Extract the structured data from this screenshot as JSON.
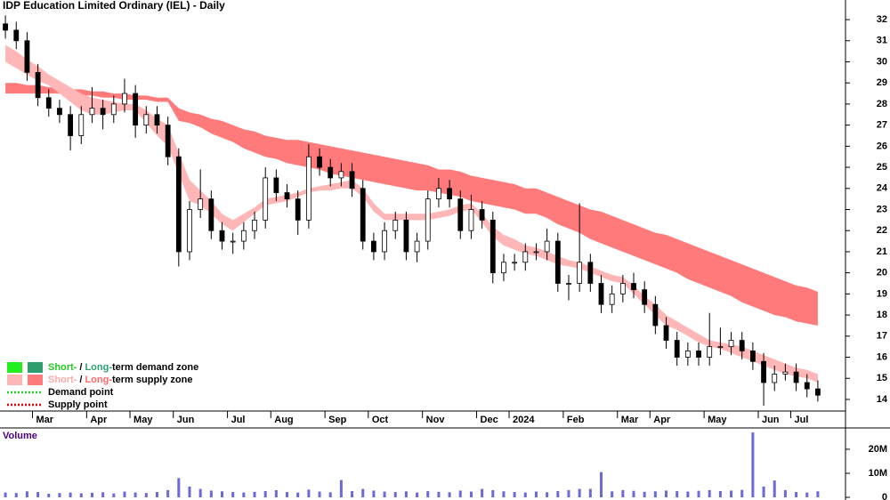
{
  "chart_data": [
    {
      "type": "candlestick",
      "title": "IDP Education Limited Ordinary (IEL) - Daily",
      "categories": [
        null,
        null,
        null,
        "Mar",
        null,
        null,
        null,
        null,
        "Apr",
        null,
        null,
        null,
        "May",
        null,
        null,
        null,
        "Jun",
        null,
        null,
        null,
        null,
        "Jul",
        null,
        null,
        null,
        "Aug",
        null,
        null,
        null,
        null,
        "Sep",
        null,
        null,
        null,
        "Oct",
        null,
        null,
        null,
        null,
        "Nov",
        null,
        null,
        null,
        null,
        "Dec",
        null,
        null,
        "2024",
        null,
        null,
        null,
        null,
        "Feb",
        null,
        null,
        null,
        null,
        "Mar",
        null,
        null,
        "Apr",
        null,
        null,
        null,
        null,
        "May",
        null,
        null,
        null,
        null,
        "Jun",
        null,
        null,
        "Jul",
        null,
        null
      ],
      "open": [
        31.8,
        31.5,
        31,
        29.5,
        28.3,
        27.8,
        27.5,
        26.5,
        27.5,
        27.8,
        27.5,
        28,
        28.5,
        27,
        27.5,
        27,
        25.5,
        21,
        23,
        23.5,
        22,
        21.5,
        21.5,
        22,
        22.5,
        24.5,
        23.8,
        23.5,
        22.5,
        25.5,
        25,
        24.5,
        24.8,
        24,
        21.5,
        21,
        22,
        22.5,
        21,
        21.5,
        23.5,
        24,
        23.5,
        22,
        23,
        22.5,
        20,
        20.5,
        20.5,
        21,
        21,
        21.5,
        19.5,
        19.5,
        20.5,
        19.5,
        18.5,
        19,
        19.5,
        19.2,
        18.5,
        17.5,
        16.8,
        16,
        16.3,
        16,
        16.5,
        16.5,
        16.8,
        16.3,
        15.8,
        14.8,
        15.2,
        15.3,
        14.8,
        14.5
      ],
      "high": [
        32.2,
        31.9,
        31.4,
        29.9,
        28.7,
        28.2,
        27.9,
        27.9,
        28.8,
        28.2,
        28.4,
        29.2,
        28.9,
        27.9,
        27.9,
        27.4,
        25.9,
        23.4,
        24.9,
        23.9,
        22.4,
        21.9,
        22.4,
        22.9,
        25,
        24.9,
        24.2,
        23.9,
        26.1,
        25.9,
        25.4,
        25.2,
        25.2,
        24.4,
        21.9,
        22.4,
        22.9,
        22.9,
        21.9,
        23.9,
        24.5,
        24.4,
        23.9,
        23.7,
        23.4,
        22.9,
        20.9,
        20.9,
        21.4,
        21.4,
        22.1,
        21.9,
        19.9,
        23.3,
        20.9,
        19.9,
        19.4,
        19.9,
        20,
        19.6,
        18.9,
        17.9,
        17.2,
        16.7,
        16.7,
        18.1,
        17.4,
        17.2,
        17.2,
        16.7,
        16.2,
        15.6,
        15.7,
        15.7,
        15.2,
        14.9
      ],
      "low": [
        31.1,
        30.6,
        29.1,
        27.9,
        27.4,
        27.1,
        25.8,
        26.1,
        27.1,
        26.8,
        27.1,
        27.6,
        26.4,
        26.6,
        26.6,
        25.1,
        20.3,
        20.6,
        22.6,
        21.6,
        21.1,
        20.9,
        21.1,
        21.6,
        22.1,
        23.4,
        23.1,
        21.8,
        22.1,
        24.6,
        24.1,
        24.1,
        23.6,
        21.1,
        20.6,
        20.6,
        21.6,
        20.6,
        20.5,
        21.1,
        23.1,
        23.1,
        21.6,
        21.6,
        22.1,
        19.5,
        19.6,
        20.1,
        20.1,
        20.6,
        20.6,
        19.1,
        18.7,
        19.1,
        19.1,
        18.1,
        18.1,
        18.6,
        18.8,
        18.1,
        17.1,
        16.4,
        15.6,
        15.6,
        15.6,
        15.6,
        16.1,
        16.1,
        15.9,
        15.4,
        13.7,
        14.4,
        14.9,
        14.4,
        14.1,
        13.9
      ],
      "close": [
        31.5,
        31,
        29.5,
        28.3,
        27.8,
        27.5,
        26.5,
        27.5,
        27.8,
        27.5,
        28,
        28.5,
        27,
        27.5,
        27,
        25.5,
        21,
        23,
        23.5,
        22,
        21.5,
        21.5,
        22,
        22.5,
        24.5,
        23.8,
        23.5,
        22.5,
        25.5,
        25,
        24.5,
        24.8,
        24,
        21.5,
        21,
        22,
        22.5,
        21,
        21.5,
        23.5,
        24,
        23.5,
        22,
        23,
        22.5,
        20,
        20.5,
        20.5,
        21,
        21,
        21.5,
        19.5,
        19.5,
        20.5,
        19.5,
        18.5,
        19,
        19.5,
        19.2,
        18.5,
        17.5,
        16.8,
        16,
        16.3,
        16,
        16.5,
        16.5,
        16.8,
        16.3,
        15.8,
        14.8,
        15.2,
        15.3,
        14.8,
        14.5,
        14.2
      ],
      "bands": [
        {
          "color": "#ff7b7b",
          "upper": [
            29.0,
            29.0,
            28.9,
            28.9,
            28.8,
            28.8,
            28.7,
            28.7,
            28.6,
            28.6,
            28.5,
            28.5,
            28.4,
            28.4,
            28.3,
            28.3,
            27.8,
            27.6,
            27.5,
            27.3,
            27.2,
            27.0,
            26.8,
            26.7,
            26.5,
            26.4,
            26.3,
            26.3,
            26.2,
            26.1,
            26.0,
            25.9,
            25.8,
            25.7,
            25.6,
            25.5,
            25.4,
            25.3,
            25.2,
            25.1,
            24.9,
            24.9,
            24.8,
            24.6,
            24.5,
            24.4,
            24.3,
            24.2,
            24.0,
            24.0,
            23.8,
            23.6,
            23.4,
            23.2,
            23.0,
            22.9,
            22.7,
            22.5,
            22.3,
            22.1,
            21.9,
            21.8,
            21.6,
            21.4,
            21.2,
            21.0,
            20.8,
            20.6,
            20.4,
            20.2,
            20.0,
            19.8,
            19.6,
            19.4,
            19.3,
            19.1
          ],
          "lower": [
            28.5,
            28.5,
            28.5,
            28.5,
            28.5,
            28.5,
            28.4,
            28.4,
            28.4,
            28.3,
            28.3,
            28.2,
            28.2,
            28.2,
            28.1,
            28.1,
            27.2,
            27.1,
            26.9,
            26.6,
            26.4,
            26.2,
            25.9,
            25.7,
            25.5,
            25.4,
            25.2,
            25.1,
            25.0,
            24.9,
            24.7,
            24.6,
            24.5,
            24.4,
            24.3,
            24.2,
            24.1,
            24.0,
            23.9,
            23.9,
            23.8,
            23.7,
            23.6,
            23.4,
            23.3,
            23.2,
            23.1,
            23.0,
            22.8,
            22.8,
            22.6,
            22.3,
            22.1,
            21.9,
            21.6,
            21.4,
            21.2,
            21.0,
            20.8,
            20.6,
            20.4,
            20.2,
            20.0,
            19.7,
            19.5,
            19.3,
            19.1,
            18.9,
            18.6,
            18.4,
            18.2,
            18.0,
            17.9,
            17.7,
            17.6,
            17.5
          ]
        },
        {
          "color": "#ffb6b6",
          "upper": [
            30.8,
            30.5,
            30.1,
            29.8,
            29.4,
            29.1,
            28.8,
            28.5,
            28.3,
            28.2,
            28.1,
            28.0,
            28.0,
            27.7,
            27.3,
            27.0,
            25.7,
            24.4,
            23.9,
            23.4,
            22.8,
            22.5,
            22.8,
            23.1,
            23.5,
            23.6,
            23.7,
            23.8,
            24.0,
            24.1,
            24.2,
            24.3,
            24.4,
            24.0,
            23.3,
            22.8,
            22.8,
            22.8,
            22.8,
            22.8,
            22.9,
            23.0,
            23.2,
            23.3,
            22.8,
            22.2,
            21.8,
            21.6,
            21.3,
            21.2,
            21.0,
            20.8,
            20.6,
            20.5,
            20.3,
            20.1,
            19.9,
            19.8,
            19.4,
            18.9,
            18.5,
            18.0,
            17.7,
            17.4,
            17.1,
            16.8,
            16.7,
            16.6,
            16.5,
            16.3,
            16.1,
            15.9,
            15.7,
            15.5,
            15.4,
            15.2
          ],
          "lower": [
            30.0,
            29.7,
            29.4,
            29.1,
            28.9,
            28.5,
            28.1,
            27.7,
            27.5,
            27.5,
            27.6,
            27.7,
            27.7,
            27.1,
            26.5,
            26.0,
            24.7,
            23.4,
            23.2,
            22.8,
            22.3,
            22.0,
            22.4,
            22.8,
            23.2,
            23.3,
            23.4,
            23.6,
            23.8,
            23.9,
            23.9,
            24.0,
            24.0,
            23.6,
            22.9,
            22.5,
            22.5,
            22.5,
            22.5,
            22.5,
            22.6,
            22.7,
            22.9,
            23.0,
            22.4,
            21.7,
            21.3,
            21.1,
            20.9,
            20.8,
            20.6,
            20.4,
            20.3,
            20.2,
            20.0,
            19.8,
            19.6,
            19.5,
            19.0,
            18.5,
            18.0,
            17.5,
            17.3,
            17.0,
            16.7,
            16.5,
            16.4,
            16.2,
            16.0,
            15.8,
            15.6,
            15.4,
            15.2,
            15.1,
            15.0,
            14.8
          ]
        }
      ],
      "ylim": [
        13.45,
        32.93
      ],
      "yticks": [
        14,
        15,
        16,
        17,
        18,
        19,
        20,
        21,
        22,
        23,
        24,
        25,
        26,
        27,
        28,
        29,
        30,
        31,
        32
      ],
      "legend": [
        {
          "swatches": [
            "#22ee22",
            "#2e9e6e"
          ],
          "parts": [
            {
              "text": "Short-",
              "color": "#22cc22"
            },
            {
              "text": "/",
              "color": "#000000"
            },
            {
              "text": "Long-",
              "color": "#2e9e6e"
            },
            {
              "text": "term demand zone",
              "color": "#000000"
            }
          ]
        },
        {
          "swatches": [
            "#ffb6b6",
            "#ff7b7b"
          ],
          "parts": [
            {
              "text": "Short-",
              "color": "#ffaaaa"
            },
            {
              "text": "/",
              "color": "#000000"
            },
            {
              "text": "Long-",
              "color": "#ff6b6b"
            },
            {
              "text": "term supply zone",
              "color": "#000000"
            }
          ]
        },
        {
          "line": "#22cc22",
          "parts": [
            {
              "text": "Demand point",
              "color": "#000000"
            }
          ]
        },
        {
          "line": "#dd0000",
          "parts": [
            {
              "text": "Supply point",
              "color": "#000000"
            }
          ]
        }
      ]
    },
    {
      "type": "bar",
      "title": "Volume",
      "color": "#6a6ad8",
      "values": [
        2000000,
        1800000,
        2500000,
        2200000,
        1500000,
        1800000,
        2000000,
        1700000,
        1900000,
        2100000,
        1600000,
        2400000,
        2000000,
        1800000,
        2200000,
        3000000,
        8000000,
        4500000,
        3500000,
        2800000,
        2500000,
        2200000,
        2000000,
        2300000,
        2600000,
        3000000,
        2200000,
        2000000,
        3200000,
        2400000,
        2100000,
        7200000,
        2600000,
        3500000,
        2800000,
        2400000,
        2200000,
        2500000,
        2000000,
        2600000,
        2300000,
        2100000,
        2800000,
        2400000,
        3500000,
        3000000,
        2500000,
        2200000,
        2000000,
        2400000,
        2100000,
        2600000,
        3000000,
        3500000,
        3500000,
        10500000,
        2500000,
        3000000,
        2700000,
        2300000,
        2500000,
        2800000,
        2600000,
        2400000,
        2700000,
        3000000,
        2600000,
        2800000,
        3100000,
        27000000,
        4500000,
        7000000,
        3000000,
        2200000,
        2000000,
        2500000
      ],
      "ylim": [
        0,
        28500000
      ],
      "yticks": [
        0,
        {
          "value": 10000000,
          "label": "10M"
        },
        {
          "value": 20000000,
          "label": "20M"
        }
      ]
    }
  ]
}
